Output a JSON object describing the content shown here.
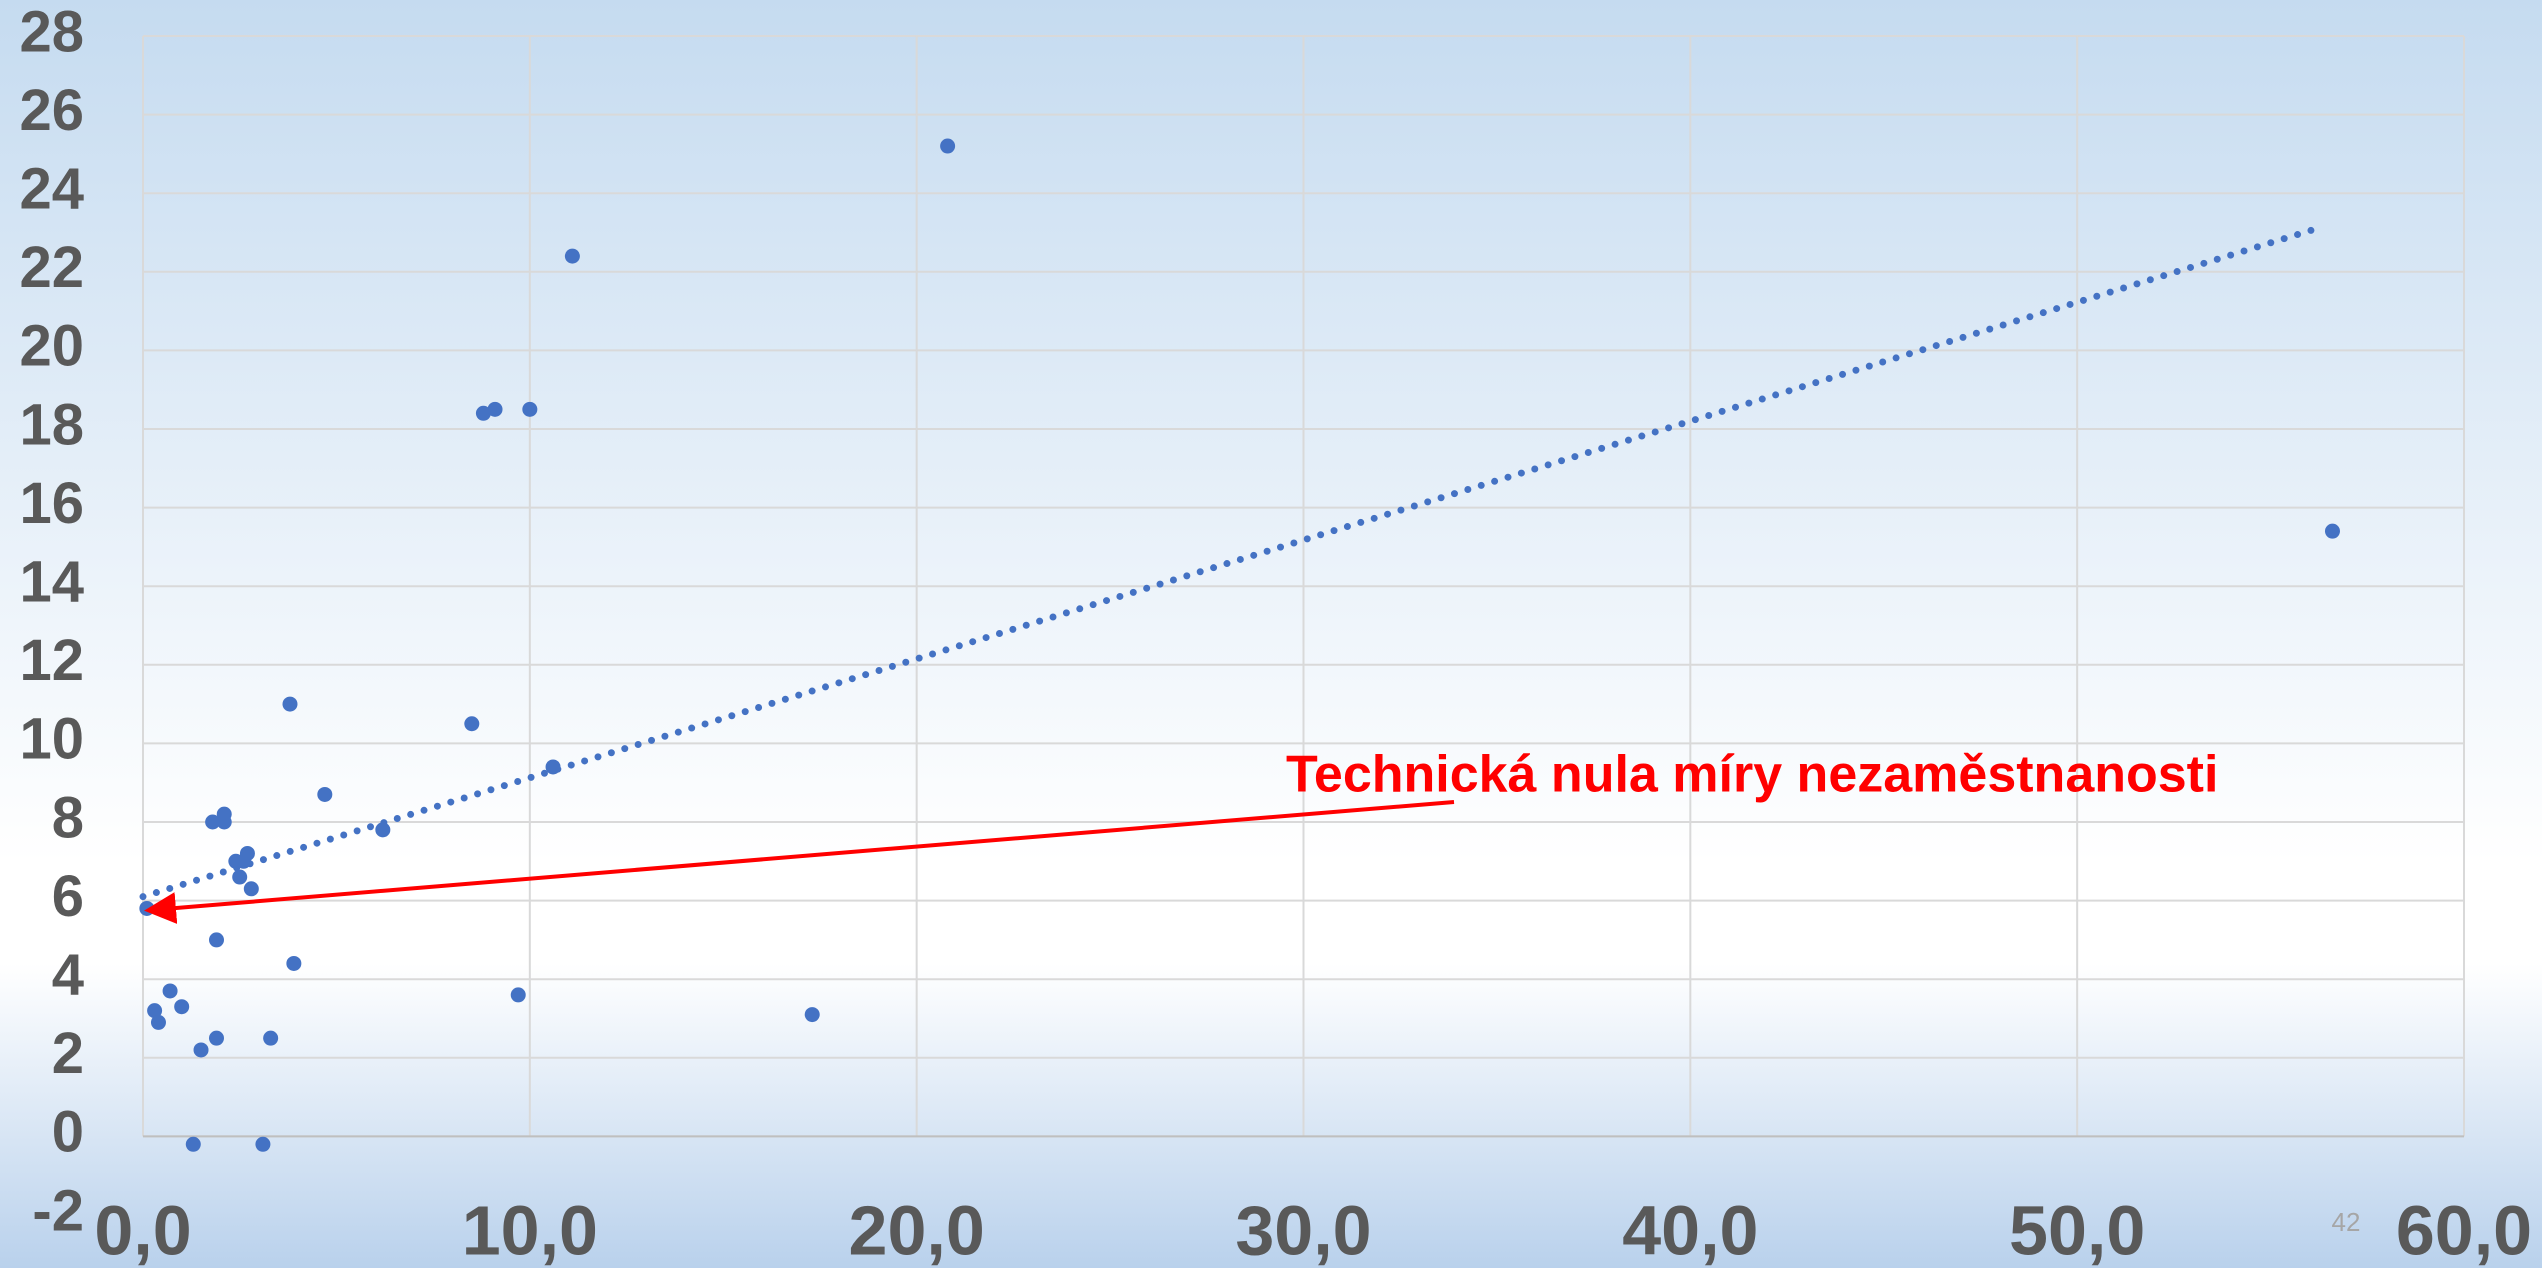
{
  "chart_data": {
    "type": "scatter",
    "x": [
      0.1,
      0.3,
      0.4,
      0.7,
      1.0,
      1.3,
      1.5,
      1.9,
      1.9,
      1.8,
      2.1,
      2.1,
      2.4,
      2.5,
      2.6,
      2.7,
      2.8,
      3.1,
      3.3,
      3.8,
      3.9,
      4.7,
      6.2,
      8.5,
      8.8,
      9.1,
      9.7,
      10.0,
      10.6,
      11.1,
      17.3,
      20.8,
      56.6
    ],
    "series": [
      {
        "color": "#4472c4",
        "values": [
          5.8,
          3.2,
          2.9,
          3.7,
          3.3,
          -0.2,
          2.2,
          2.5,
          5.0,
          8.0,
          8.2,
          8.0,
          7.0,
          6.6,
          7.0,
          7.2,
          6.3,
          -0.2,
          2.5,
          11.0,
          4.4,
          8.7,
          7.8,
          10.5,
          18.4,
          18.5,
          3.6,
          18.5,
          9.4,
          22.4,
          3.1,
          25.2,
          15.4
        ]
      }
    ],
    "trendline": {
      "color": "#4472c4",
      "x": [
        0,
        56.2
      ],
      "y": [
        6.1,
        23.1
      ]
    },
    "annotation": "Technická nula míry nezaměstnanosti",
    "page_number": "42",
    "xlim": [
      0,
      60
    ],
    "xticks": [
      {
        "value": 0,
        "label": "0,0"
      },
      {
        "value": 10,
        "label": "10,0"
      },
      {
        "value": 20,
        "label": "20,0"
      },
      {
        "value": 30,
        "label": "30,0"
      },
      {
        "value": 40,
        "label": "40,0"
      },
      {
        "value": 50,
        "label": "50,0"
      },
      {
        "value": 60,
        "label": "60,0"
      }
    ],
    "ylim": [
      -2,
      28
    ],
    "yticks": [
      -2,
      0,
      2,
      4,
      6,
      8,
      10,
      12,
      14,
      16,
      18,
      20,
      22,
      24,
      26,
      28
    ],
    "grid": true
  }
}
